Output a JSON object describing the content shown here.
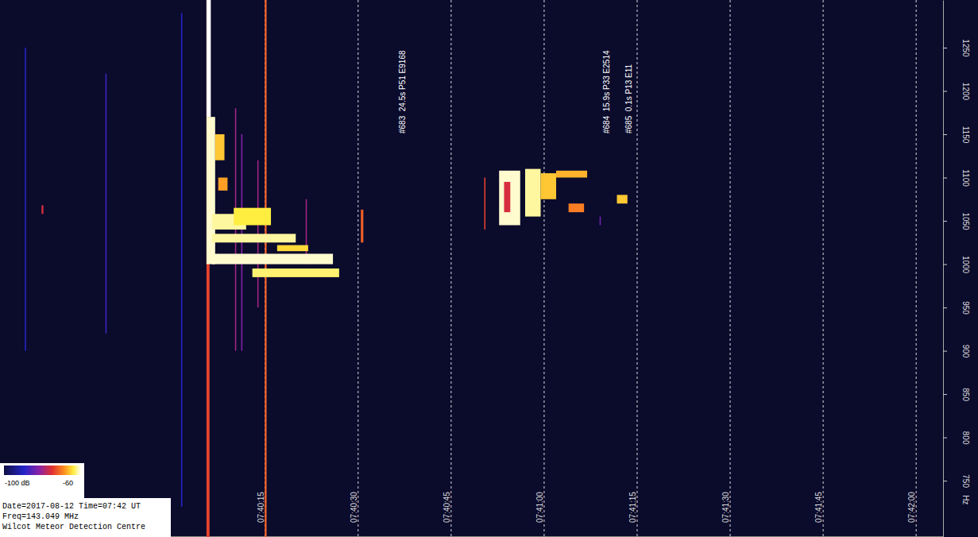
{
  "chart_data": {
    "type": "spectrogram",
    "y_label": "Hz",
    "xlim": [
      27572.3,
      27724.4
    ],
    "xticks": [
      {
        "value": 27615,
        "label": "07:40:15"
      },
      {
        "value": 27630,
        "label": "07:40:30"
      },
      {
        "value": 27645,
        "label": "07:40:45"
      },
      {
        "value": 27660,
        "label": "07:41:00"
      },
      {
        "value": 27675,
        "label": "07:41:15"
      },
      {
        "value": 27690,
        "label": "07:41:30"
      },
      {
        "value": 27705,
        "label": "07:41:45"
      },
      {
        "value": 27720,
        "label": "07:42:00"
      }
    ],
    "ylim": [
      685,
      1305
    ],
    "yticks": [
      750,
      800,
      850,
      900,
      950,
      1000,
      1050,
      1100,
      1150,
      1200,
      1250
    ],
    "grid": true,
    "cells": [
      [
        27579.0,
        27579.3,
        1058,
        1068,
        -76
      ],
      [
        27576.3,
        27576.5,
        900,
        1250,
        -90
      ],
      [
        27589.3,
        27589.5,
        920,
        1220,
        -88
      ],
      [
        27601.5,
        27601.7,
        720,
        1290,
        -90
      ],
      [
        27605.6,
        27606.1,
        685,
        1305,
        -74
      ],
      [
        27615.0,
        27615.3,
        685,
        1305,
        -72
      ],
      [
        27610.2,
        27610.4,
        900,
        1180,
        -80
      ],
      [
        27611.2,
        27611.4,
        900,
        1150,
        -82
      ],
      [
        27613.8,
        27614.0,
        950,
        1120,
        -80
      ],
      [
        27621.6,
        27621.8,
        1000,
        1075,
        -80
      ],
      [
        27605.6,
        27606.3,
        1170,
        1305,
        -60
      ],
      [
        27605.6,
        27607.0,
        1000,
        1170,
        -61
      ],
      [
        27607.0,
        27608.5,
        1120,
        1150,
        -66
      ],
      [
        27607.5,
        27609.0,
        1085,
        1100,
        -68
      ],
      [
        27606.5,
        27612.0,
        1040,
        1058,
        -62
      ],
      [
        27610.0,
        27616.0,
        1045,
        1065,
        -64
      ],
      [
        27606.5,
        27620.0,
        1025,
        1035,
        -62
      ],
      [
        27617.0,
        27622.0,
        1015,
        1022,
        -65
      ],
      [
        27606.5,
        27626.0,
        1000,
        1012,
        -61
      ],
      [
        27613.0,
        27627.0,
        985,
        995,
        -63
      ],
      [
        27630.5,
        27630.9,
        1025,
        1063,
        -72
      ],
      [
        27650.4,
        27650.6,
        1040,
        1100,
        -74
      ],
      [
        27652.8,
        27656.2,
        1045,
        1108,
        -61
      ],
      [
        27653.6,
        27654.6,
        1060,
        1095,
        -76
      ],
      [
        27657.0,
        27659.5,
        1055,
        1110,
        -62
      ],
      [
        27659.5,
        27662.0,
        1075,
        1105,
        -66
      ],
      [
        27662.0,
        27667.0,
        1100,
        1108,
        -67
      ],
      [
        27664.0,
        27666.5,
        1060,
        1070,
        -70
      ],
      [
        27671.8,
        27673.5,
        1070,
        1080,
        -66
      ],
      [
        27669.0,
        27669.2,
        1045,
        1055,
        -84
      ]
    ],
    "colorbar": {
      "range": [
        -100,
        -60
      ],
      "ticks": [
        {
          "value": -100,
          "label": "-100 dB"
        },
        -60
      ]
    },
    "annotations": [
      {
        "text": "#683  24.5s P51 E9168",
        "x": 27637.6
      },
      {
        "text": "#684  15.9s P33 E2514",
        "x": 27670.6
      },
      {
        "text": "#685  0.1s P13 E11",
        "x": 27674.2
      }
    ],
    "info": [
      "Date=2017-08-12 Time=07:42 UT",
      "Freq=143.049 MHz",
      "Wilcot Meteor Detection Centre"
    ]
  }
}
